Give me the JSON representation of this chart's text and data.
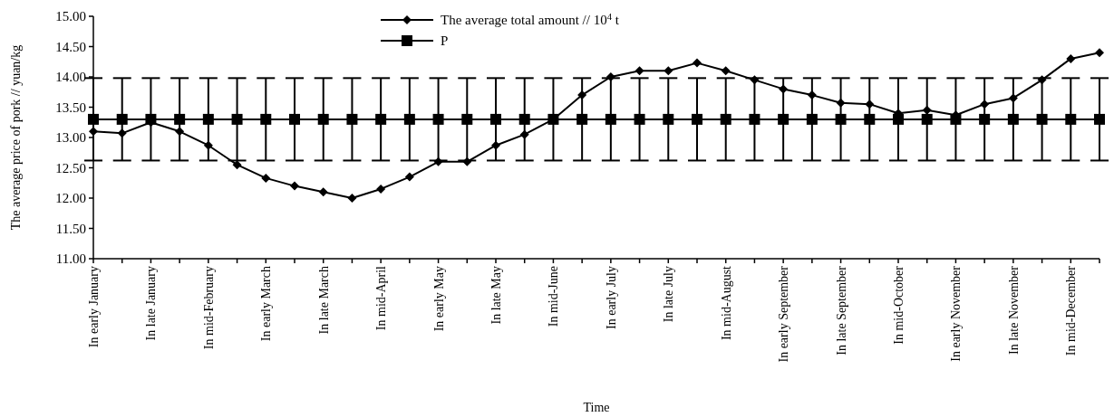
{
  "chart_data": {
    "type": "line",
    "xlabel": "Time",
    "ylabel": "The average price of pork // yuan/kg",
    "categories": [
      "In early January",
      null,
      "In late January",
      null,
      "In mid-February",
      null,
      "In early March",
      null,
      "In late March",
      null,
      "In mid-April",
      null,
      "In early May",
      null,
      "In late May",
      null,
      "In mid-June",
      null,
      "In early July",
      null,
      "In late July",
      null,
      "In mid-August",
      null,
      "In early September",
      null,
      "In late September",
      null,
      "In mid-October",
      null,
      "In early November",
      null,
      "In late November",
      null,
      "In mid-December",
      null
    ],
    "series": [
      {
        "name": "The average total amount // 10$^{4}$ t",
        "color": "#000000",
        "marker": "diamond",
        "values": [
          13.1,
          13.07,
          13.25,
          13.1,
          12.87,
          12.55,
          12.33,
          12.2,
          12.1,
          12.0,
          12.15,
          12.35,
          12.6,
          12.6,
          12.87,
          13.05,
          13.3,
          13.7,
          14.0,
          14.1,
          14.1,
          14.23,
          14.1,
          13.95,
          13.8,
          13.7,
          13.57,
          13.55,
          13.4,
          13.45,
          13.37,
          13.55,
          13.65,
          13.95,
          14.3,
          14.4
        ]
      },
      {
        "name": "P",
        "color": "#000000",
        "marker": "square",
        "values": [
          13.3,
          13.3,
          13.3,
          13.3,
          13.3,
          13.3,
          13.3,
          13.3,
          13.3,
          13.3,
          13.3,
          13.3,
          13.3,
          13.3,
          13.3,
          13.3,
          13.3,
          13.3,
          13.3,
          13.3,
          13.3,
          13.3,
          13.3,
          13.3,
          13.3,
          13.3,
          13.3,
          13.3,
          13.3,
          13.3,
          13.3,
          13.3,
          13.3,
          13.3,
          13.3,
          13.3
        ],
        "errors": [
          0.68,
          0.68,
          0.68,
          0.68,
          0.68,
          0.68,
          0.68,
          0.68,
          0.68,
          0.68,
          0.68,
          0.68,
          0.68,
          0.68,
          0.68,
          0.68,
          0.68,
          0.68,
          0.68,
          0.68,
          0.68,
          0.68,
          0.68,
          0.68,
          0.68,
          0.68,
          0.68,
          0.68,
          0.68,
          0.68,
          0.68,
          0.68,
          0.68,
          0.68,
          0.68,
          0.68
        ]
      }
    ],
    "ylim": [
      11,
      15
    ],
    "yticks": [
      {
        "value": 11,
        "label": "11.00"
      },
      {
        "value": 11.5,
        "label": "11.50"
      },
      {
        "value": 12,
        "label": "12.00"
      },
      {
        "value": 12.5,
        "label": "12.50"
      },
      {
        "value": 13,
        "label": "13.00"
      },
      {
        "value": 13.5,
        "label": "13.50"
      },
      {
        "value": 14,
        "label": "14.00"
      },
      {
        "value": 14.5,
        "label": "14.50"
      },
      {
        "value": 15,
        "label": "15.00"
      }
    ],
    "legend": "top",
    "grid": false
  }
}
